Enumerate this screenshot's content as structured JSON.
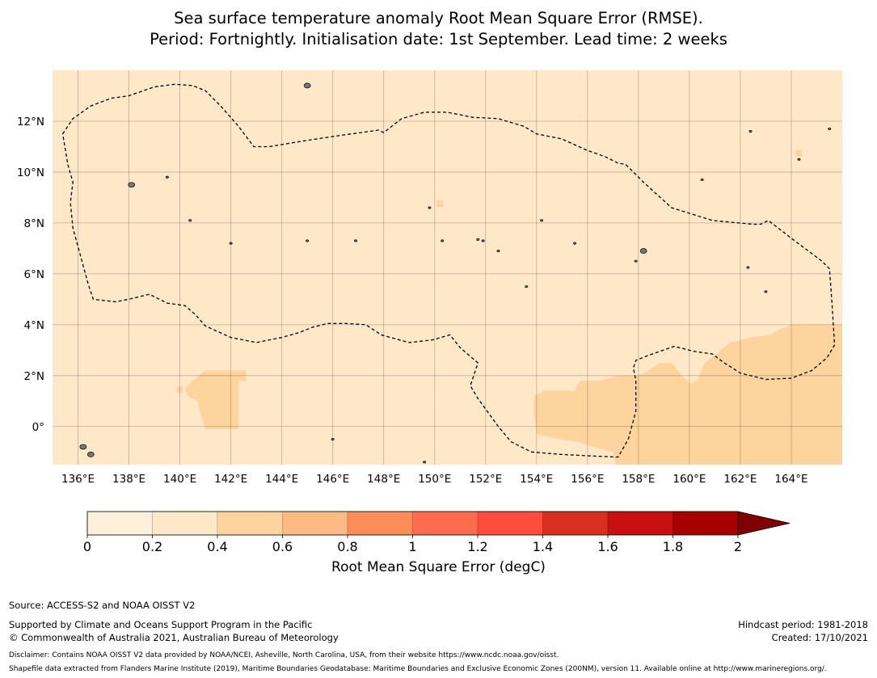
{
  "title": {
    "line1": "Sea surface temperature anomaly Root Mean Square Error (RMSE).",
    "line2": "Period: Fortnightly. Initialisation date: 1st September. Lead time: 2 weeks"
  },
  "map": {
    "lon_range": [
      135,
      166
    ],
    "lat_range": [
      -1.5,
      14
    ],
    "x_ticks": [
      136,
      138,
      140,
      142,
      144,
      146,
      148,
      150,
      152,
      154,
      156,
      158,
      160,
      162,
      164
    ],
    "x_tick_labels": [
      "136°E",
      "138°E",
      "140°E",
      "142°E",
      "144°E",
      "146°E",
      "148°E",
      "150°E",
      "152°E",
      "154°E",
      "156°E",
      "158°E",
      "160°E",
      "162°E",
      "164°E"
    ],
    "y_ticks": [
      0,
      2,
      4,
      6,
      8,
      10,
      12
    ],
    "y_tick_labels": [
      "0°",
      "2°N",
      "4°N",
      "6°N",
      "8°N",
      "10°N",
      "12°N"
    ],
    "grid": true,
    "background_class_color": "#fee8c8",
    "eez_boundary": [
      [
        135.4,
        11.5
      ],
      [
        135.8,
        12.1
      ],
      [
        136.5,
        12.6
      ],
      [
        137.3,
        12.9
      ],
      [
        138.0,
        13.0
      ],
      [
        139.0,
        13.35
      ],
      [
        139.8,
        13.45
      ],
      [
        140.5,
        13.4
      ],
      [
        141.0,
        13.2
      ],
      [
        141.6,
        12.6
      ],
      [
        142.3,
        11.8
      ],
      [
        142.9,
        11.0
      ],
      [
        143.5,
        11.0
      ],
      [
        144.7,
        11.2
      ],
      [
        146.0,
        11.4
      ],
      [
        147.8,
        11.65
      ],
      [
        148.0,
        11.55
      ],
      [
        148.7,
        12.1
      ],
      [
        149.6,
        12.35
      ],
      [
        150.5,
        12.35
      ],
      [
        151.5,
        12.15
      ],
      [
        152.5,
        12.1
      ],
      [
        153.5,
        11.8
      ],
      [
        154.0,
        11.5
      ],
      [
        155.0,
        11.3
      ],
      [
        156.0,
        10.85
      ],
      [
        156.7,
        10.6
      ],
      [
        157.2,
        10.35
      ],
      [
        157.5,
        10.3
      ],
      [
        158.2,
        9.6
      ],
      [
        159.3,
        8.6
      ],
      [
        160.9,
        8.1
      ],
      [
        162.5,
        7.95
      ],
      [
        162.8,
        7.95
      ],
      [
        163.1,
        8.1
      ],
      [
        164.0,
        7.4
      ],
      [
        165.2,
        6.5
      ],
      [
        165.5,
        6.2
      ],
      [
        165.6,
        4.8
      ],
      [
        165.7,
        3.2
      ],
      [
        165.4,
        2.7
      ],
      [
        164.8,
        2.2
      ],
      [
        164.0,
        1.9
      ],
      [
        163.0,
        1.85
      ],
      [
        162.0,
        2.1
      ],
      [
        161.3,
        2.55
      ],
      [
        160.9,
        2.85
      ],
      [
        160.2,
        2.95
      ],
      [
        159.4,
        3.15
      ],
      [
        158.4,
        2.8
      ],
      [
        157.9,
        2.6
      ],
      [
        157.8,
        2.3
      ],
      [
        157.9,
        1.8
      ],
      [
        157.9,
        0.6
      ],
      [
        157.6,
        -0.5
      ],
      [
        157.2,
        -1.2
      ],
      [
        156.0,
        -1.15
      ],
      [
        155.0,
        -1.1
      ],
      [
        153.8,
        -1.0
      ],
      [
        153.0,
        -0.6
      ],
      [
        152.5,
        0.0
      ],
      [
        151.7,
        1.1
      ],
      [
        151.4,
        1.6
      ],
      [
        151.7,
        2.5
      ],
      [
        151.0,
        3.1
      ],
      [
        150.6,
        3.6
      ],
      [
        149.9,
        3.4
      ],
      [
        149.0,
        3.3
      ],
      [
        147.9,
        3.6
      ],
      [
        147.3,
        4.0
      ],
      [
        146.5,
        4.05
      ],
      [
        145.8,
        4.05
      ],
      [
        145.2,
        3.9
      ],
      [
        144.7,
        3.7
      ],
      [
        144.0,
        3.5
      ],
      [
        143.0,
        3.3
      ],
      [
        142.0,
        3.5
      ],
      [
        141.0,
        3.95
      ],
      [
        140.6,
        4.4
      ],
      [
        140.2,
        4.75
      ],
      [
        139.5,
        4.85
      ],
      [
        138.8,
        5.2
      ],
      [
        138.2,
        5.05
      ],
      [
        137.5,
        4.9
      ],
      [
        136.6,
        5.0
      ],
      [
        136.4,
        5.6
      ],
      [
        136.1,
        6.7
      ],
      [
        135.8,
        7.8
      ],
      [
        135.7,
        8.8
      ],
      [
        135.8,
        9.6
      ],
      [
        135.6,
        10.3
      ]
    ],
    "islands": [
      [
        145.0,
        13.4
      ],
      [
        138.1,
        9.5
      ],
      [
        139.5,
        9.8
      ],
      [
        140.4,
        8.1
      ],
      [
        142.0,
        7.2
      ],
      [
        145.0,
        7.3
      ],
      [
        146.9,
        7.3
      ],
      [
        149.8,
        8.6
      ],
      [
        150.3,
        7.3
      ],
      [
        151.7,
        7.35
      ],
      [
        151.9,
        7.3
      ],
      [
        152.5,
        6.9
      ],
      [
        153.6,
        5.5
      ],
      [
        154.2,
        8.1
      ],
      [
        155.5,
        7.2
      ],
      [
        158.2,
        6.9
      ],
      [
        162.3,
        6.25
      ],
      [
        163.0,
        5.3
      ],
      [
        162.4,
        11.6
      ],
      [
        165.5,
        11.7
      ],
      [
        160.5,
        9.7
      ],
      [
        146.0,
        -0.5
      ],
      [
        149.6,
        -1.4
      ],
      [
        136.2,
        -0.8
      ],
      [
        136.5,
        -1.1
      ],
      [
        157.9,
        6.5
      ],
      [
        164.3,
        10.5
      ]
    ],
    "anomaly_regions": [
      [
        [
          141.0,
          -0.1
        ],
        [
          142.3,
          -0.1
        ],
        [
          142.3,
          1.8
        ],
        [
          142.6,
          1.8
        ],
        [
          142.6,
          2.2
        ],
        [
          141.0,
          2.2
        ],
        [
          140.5,
          1.8
        ],
        [
          140.2,
          1.5
        ],
        [
          140.3,
          1.2
        ],
        [
          140.7,
          1.0
        ],
        [
          140.8,
          0.5
        ]
      ],
      [
        [
          154.8,
          1.4
        ],
        [
          155.5,
          1.4
        ],
        [
          155.7,
          1.8
        ],
        [
          156.5,
          1.8
        ],
        [
          157.2,
          2.0
        ],
        [
          158.0,
          2.0
        ],
        [
          158.4,
          2.2
        ],
        [
          158.8,
          2.5
        ],
        [
          159.3,
          2.5
        ],
        [
          159.7,
          2.0
        ],
        [
          160.0,
          1.7
        ],
        [
          160.3,
          1.8
        ],
        [
          160.6,
          2.5
        ],
        [
          161.0,
          2.8
        ],
        [
          161.6,
          3.3
        ],
        [
          162.4,
          3.5
        ],
        [
          163.2,
          3.6
        ],
        [
          163.5,
          3.8
        ],
        [
          164.0,
          4.0
        ],
        [
          166.0,
          4.0
        ],
        [
          166.0,
          -1.5
        ],
        [
          157.1,
          -1.5
        ],
        [
          157.0,
          -1.0
        ],
        [
          156.2,
          -0.8
        ],
        [
          155.6,
          -0.6
        ],
        [
          154.9,
          -0.5
        ],
        [
          154.0,
          -0.3
        ],
        [
          153.9,
          0.5
        ],
        [
          153.9,
          1.2
        ],
        [
          154.3,
          1.4
        ]
      ]
    ],
    "patches": [
      [
        150.2,
        8.75
      ],
      [
        164.3,
        10.75
      ],
      [
        140.0,
        1.45
      ]
    ]
  },
  "colorbar": {
    "ticks": [
      "0",
      "0.2",
      "0.4",
      "0.6",
      "0.8",
      "1",
      "1.2",
      "1.4",
      "1.6",
      "1.8",
      "2"
    ],
    "colors": [
      "#fff0dc",
      "#fee8c8",
      "#fdd49e",
      "#fdbb84",
      "#fc8d59",
      "#ff6b4d",
      "#ff4d3d",
      "#d73020",
      "#c81010",
      "#a80000"
    ],
    "extend_color": "#7f0000",
    "label": "Root Mean Square Error (degC)"
  },
  "footer": {
    "source": "Source: ACCESS-S2 and NOAA OISST V2",
    "support": "Supported by Climate and Oceans Support Program in the Pacific",
    "copyright": "© Commonwealth of Australia 2021, Australian Bureau of Meteorology",
    "hindcast": "Hindcast period: 1981-2018",
    "created": "Created: 17/10/2021",
    "disclaimer": "Disclaimer: Contains NOAA OISST V2 data provided by NOAA/NCEI, Asheville, North Carolina, USA, from their website https://www.ncdc.noaa.gov/oisst.",
    "shapefile": "Shapefile data extracted from Flanders Marine Institute (2019), Maritime Boundaries Geodatabase: Maritime Boundaries and Exclusive Economic Zones (200NM), version 11. Available online at http://www.marineregions.org/."
  }
}
